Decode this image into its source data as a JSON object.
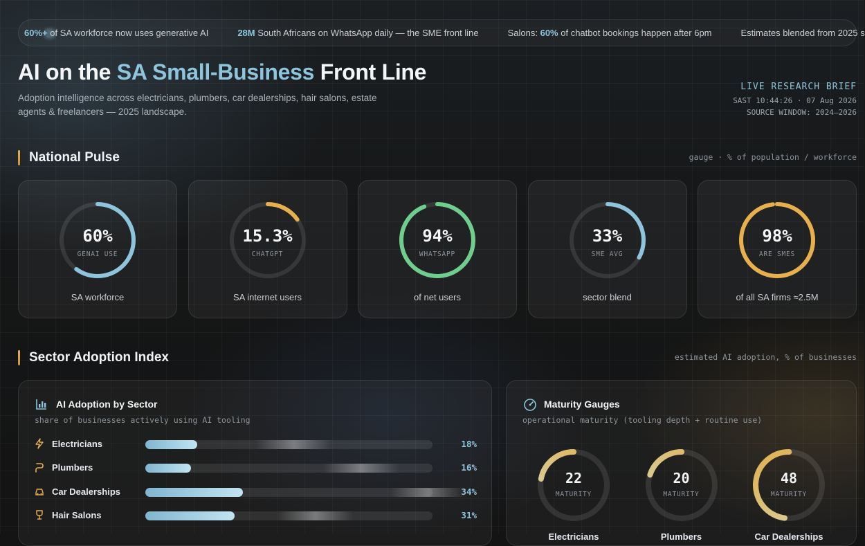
{
  "ticker": [
    {
      "strong": "60%+",
      "text": " of SA workforce now uses generative AI"
    },
    {
      "strong": "28M",
      "text": " South Africans on WhatsApp daily — the SME front line"
    },
    {
      "prefix": "Salons: ",
      "strong": "60%",
      "text": " of chatbot bookings happen after 6pm"
    },
    {
      "text": "Estimates blended from 2025 s"
    }
  ],
  "header": {
    "title_pre": "AI on the ",
    "title_highlight": "SA Small-Business",
    "title_post": " Front Line",
    "subtitle": "Adoption intelligence across electricians, plumbers, car dealerships, hair salons, estate agents & freelancers — 2025 landscape.",
    "brief_title": "LIVE RESEARCH BRIEF",
    "brief_time": "SAST 10:44:26 · 07 Aug 2026",
    "brief_window": "SOURCE WINDOW: 2024–2026"
  },
  "national_pulse": {
    "title": "National Pulse",
    "note": "gauge · % of population / workforce",
    "gauges": [
      {
        "value": "60%",
        "fraction": 0.6,
        "sub": "GENAI USE",
        "caption": "SA workforce",
        "color": "#8ec5dd"
      },
      {
        "value": "15.3%",
        "fraction": 0.153,
        "sub": "CHATGPT",
        "caption": "SA internet users",
        "color": "#e8b04c"
      },
      {
        "value": "94%",
        "fraction": 0.94,
        "sub": "WHATSAPP",
        "caption": "of net users",
        "color": "#6fce8d"
      },
      {
        "value": "33%",
        "fraction": 0.33,
        "sub": "SME AVG",
        "caption": "sector blend",
        "color": "#8ec5dd"
      },
      {
        "value": "98%",
        "fraction": 0.98,
        "sub": "ARE SMES",
        "caption": "of all SA firms ≈2.5M",
        "color": "#e8b04c"
      }
    ]
  },
  "sector_index": {
    "title": "Sector Adoption Index",
    "note": "estimated AI adoption, % of businesses"
  },
  "adoption_panel": {
    "title": "AI Adoption by Sector",
    "icon": "bar-chart-icon",
    "desc": "share of businesses actively using AI tooling",
    "rows": [
      {
        "label": "Electricians",
        "value": "18%",
        "fraction": 0.18,
        "icon": "lightning-icon"
      },
      {
        "label": "Plumbers",
        "value": "16%",
        "fraction": 0.16,
        "icon": "pipe-icon"
      },
      {
        "label": "Car Dealerships",
        "value": "34%",
        "fraction": 0.34,
        "icon": "car-icon"
      },
      {
        "label": "Hair Salons",
        "value": "31%",
        "fraction": 0.31,
        "icon": "salon-icon"
      }
    ]
  },
  "maturity_panel": {
    "title": "Maturity Gauges",
    "icon": "gauge-icon",
    "desc": "operational maturity (tooling depth + routine use)",
    "gauges": [
      {
        "value": "22",
        "fraction": 0.22,
        "sub": "MATURITY",
        "name": "Electricians"
      },
      {
        "value": "20",
        "fraction": 0.2,
        "sub": "MATURITY",
        "name": "Plumbers"
      },
      {
        "value": "48",
        "fraction": 0.48,
        "sub": "MATURITY",
        "name": "Car Dealerships"
      }
    ]
  }
}
